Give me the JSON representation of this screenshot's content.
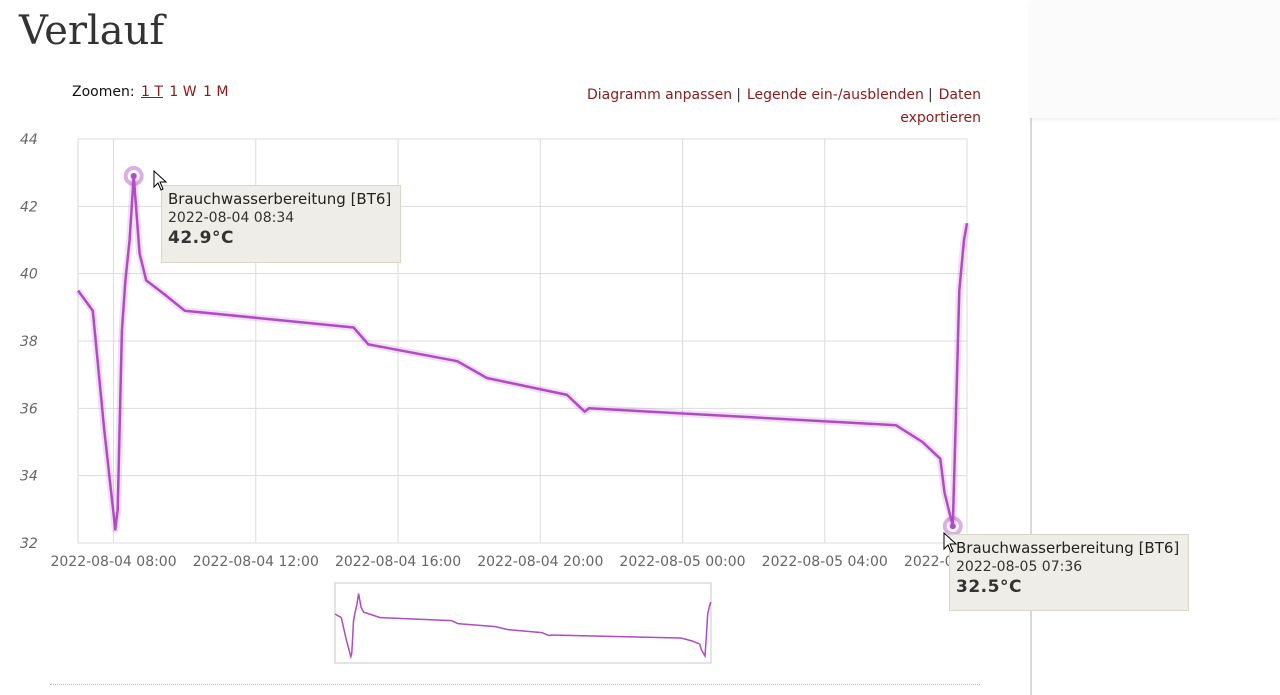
{
  "page": {
    "title": "Verlauf"
  },
  "zoom": {
    "label": "Zoomen:",
    "options": [
      "1 T",
      "1 W",
      "1 M"
    ],
    "active": "1 T"
  },
  "actions": {
    "customize": "Diagramm anpassen",
    "legend": "Legende ein-/ausblenden",
    "export_line1": "Daten",
    "export_line2": "exportieren",
    "separator": "|"
  },
  "chart_data": {
    "type": "line",
    "series": [
      {
        "name": "Brauchwasserbereitung [BT6]",
        "color": "#b04bc4",
        "unit": "°C",
        "points": [
          [
            "2022-08-04 07:00",
            39.5
          ],
          [
            "2022-08-04 07:25",
            38.9
          ],
          [
            "2022-08-04 07:44",
            35.4
          ],
          [
            "2022-08-04 08:03",
            32.4
          ],
          [
            "2022-08-04 08:07",
            33.0
          ],
          [
            "2022-08-04 08:14",
            38.3
          ],
          [
            "2022-08-04 08:20",
            39.8
          ],
          [
            "2022-08-04 08:27",
            41.0
          ],
          [
            "2022-08-04 08:34",
            42.9
          ],
          [
            "2022-08-04 08:44",
            40.6
          ],
          [
            "2022-08-04 08:55",
            39.8
          ],
          [
            "2022-08-04 09:25",
            39.4
          ],
          [
            "2022-08-04 10:00",
            38.9
          ],
          [
            "2022-08-04 14:45",
            38.4
          ],
          [
            "2022-08-04 15:10",
            37.9
          ],
          [
            "2022-08-04 17:40",
            37.4
          ],
          [
            "2022-08-04 18:30",
            36.9
          ],
          [
            "2022-08-04 20:45",
            36.4
          ],
          [
            "2022-08-04 21:15",
            35.9
          ],
          [
            "2022-08-04 21:22",
            36.0
          ],
          [
            "2022-08-05 06:00",
            35.5
          ],
          [
            "2022-08-05 06:45",
            35.0
          ],
          [
            "2022-08-05 07:15",
            34.5
          ],
          [
            "2022-08-05 07:22",
            33.5
          ],
          [
            "2022-08-05 07:36",
            32.5
          ],
          [
            "2022-08-05 07:42",
            36.2
          ],
          [
            "2022-08-05 07:47",
            39.5
          ],
          [
            "2022-08-05 07:55",
            41.0
          ],
          [
            "2022-08-05 08:00",
            41.5
          ]
        ]
      }
    ],
    "x_start": "2022-08-04 07:00",
    "x_end": "2022-08-05 08:00",
    "xticks": [
      "2022-08-04 08:00",
      "2022-08-04 12:00",
      "2022-08-04 16:00",
      "2022-08-04 20:00",
      "2022-08-05 00:00",
      "2022-08-05 04:00",
      "2022-08-05 08:00"
    ],
    "ylim": [
      32,
      44
    ],
    "yticks": [
      32,
      34,
      36,
      38,
      40,
      42,
      44
    ],
    "grid": true,
    "navigator": true,
    "tooltips": [
      {
        "series": "Brauchwasserbereitung [BT6]",
        "time": "2022-08-04 08:34",
        "value": "42.9°C"
      },
      {
        "series": "Brauchwasserbereitung [BT6]",
        "time": "2022-08-05 07:36",
        "value": "32.5°C"
      }
    ]
  }
}
